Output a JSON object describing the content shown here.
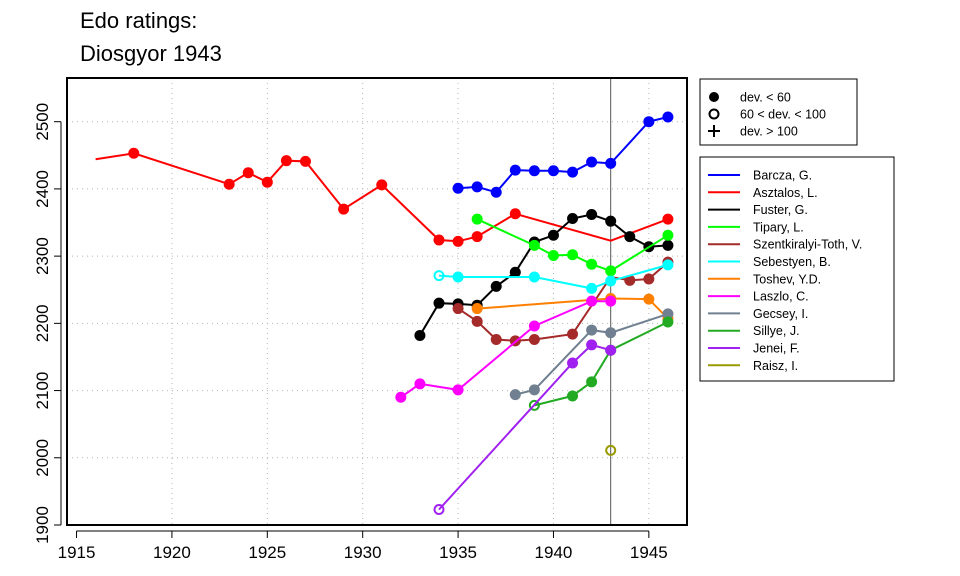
{
  "chart_data": {
    "type": "line",
    "title": "Edo ratings:",
    "subtitle": "Diosgyor 1943",
    "xlabel": "",
    "ylabel": "",
    "xlim": [
      1914.5,
      1947
    ],
    "ylim": [
      1900,
      2565
    ],
    "x_ticks": [
      1915,
      1920,
      1925,
      1930,
      1935,
      1940,
      1945
    ],
    "x_tick_labels": [
      "1915",
      "1920",
      "1925",
      "1930",
      "1935",
      "1940",
      "1945"
    ],
    "y_ticks": [
      1900,
      2000,
      2100,
      2200,
      2300,
      2400,
      2500
    ],
    "y_tick_labels": [
      "1900",
      "2000",
      "2100",
      "2200",
      "2300",
      "2400",
      "2500"
    ],
    "grid": true,
    "marker_line_year": 1943,
    "marker_legend": [
      {
        "symbol": "filled-circle",
        "label": "dev. < 60"
      },
      {
        "symbol": "open-circle",
        "label": "60 < dev. < 100"
      },
      {
        "symbol": "plus",
        "label": "dev. > 100"
      }
    ],
    "legend_position": "right",
    "series": [
      {
        "name": "Barcza, G.",
        "color": "#0000ff",
        "points": [
          [
            1935,
            2401,
            "f"
          ],
          [
            1936,
            2403,
            "f"
          ],
          [
            1937,
            2395,
            "f"
          ],
          [
            1938,
            2428,
            "f"
          ],
          [
            1939,
            2427,
            "f"
          ],
          [
            1940,
            2427,
            "f"
          ],
          [
            1941,
            2425,
            "f"
          ],
          [
            1942,
            2440,
            "f"
          ],
          [
            1943,
            2438,
            "f"
          ],
          [
            1945,
            2500,
            "f"
          ],
          [
            1946,
            2507,
            "f"
          ]
        ]
      },
      {
        "name": "Asztalos, L.",
        "color": "#ff0000",
        "points": [
          [
            1916,
            2444,
            "n"
          ],
          [
            1918,
            2453,
            "f"
          ],
          [
            1923,
            2407,
            "f"
          ],
          [
            1924,
            2424,
            "f"
          ],
          [
            1925,
            2410,
            "f"
          ],
          [
            1926,
            2442,
            "f"
          ],
          [
            1927,
            2441,
            "f"
          ],
          [
            1929,
            2370,
            "f"
          ],
          [
            1931,
            2406,
            "f"
          ],
          [
            1934,
            2324,
            "f"
          ],
          [
            1935,
            2322,
            "f"
          ],
          [
            1936,
            2329,
            "f"
          ],
          [
            1938,
            2363,
            "f"
          ],
          [
            1943,
            2323,
            "n"
          ],
          [
            1946,
            2355,
            "f"
          ]
        ]
      },
      {
        "name": "Fuster, G.",
        "color": "#000000",
        "points": [
          [
            1933,
            2182,
            "f"
          ],
          [
            1934,
            2230,
            "f"
          ],
          [
            1935,
            2229,
            "f"
          ],
          [
            1936,
            2227,
            "f"
          ],
          [
            1937,
            2255,
            "f"
          ],
          [
            1938,
            2276,
            "f"
          ],
          [
            1939,
            2321,
            "f"
          ],
          [
            1940,
            2331,
            "f"
          ],
          [
            1941,
            2356,
            "f"
          ],
          [
            1942,
            2362,
            "f"
          ],
          [
            1943,
            2352,
            "f"
          ],
          [
            1944,
            2329,
            "f"
          ],
          [
            1945,
            2314,
            "f"
          ],
          [
            1946,
            2316,
            "f"
          ]
        ]
      },
      {
        "name": "Tipary, L.",
        "color": "#00ff00",
        "points": [
          [
            1936,
            2355,
            "f"
          ],
          [
            1939,
            2316,
            "f"
          ],
          [
            1940,
            2301,
            "f"
          ],
          [
            1941,
            2302,
            "f"
          ],
          [
            1942,
            2288,
            "f"
          ],
          [
            1943,
            2278,
            "f"
          ],
          [
            1946,
            2331,
            "f"
          ]
        ]
      },
      {
        "name": "Szentkiralyi-Toth, V.",
        "color": "#a52a2a",
        "points": [
          [
            1935,
            2222,
            "f"
          ],
          [
            1936,
            2203,
            "f"
          ],
          [
            1937,
            2176,
            "f"
          ],
          [
            1938,
            2174,
            "f"
          ],
          [
            1939,
            2176,
            "f"
          ],
          [
            1941,
            2184,
            "f"
          ],
          [
            1943,
            2269,
            "n"
          ],
          [
            1944,
            2264,
            "f"
          ],
          [
            1945,
            2266,
            "f"
          ],
          [
            1946,
            2291,
            "f"
          ]
        ]
      },
      {
        "name": "Sebestyen, B.",
        "color": "#00ffff",
        "points": [
          [
            1934,
            2271,
            "o"
          ],
          [
            1935,
            2269,
            "f"
          ],
          [
            1939,
            2269,
            "f"
          ],
          [
            1942,
            2252,
            "f"
          ],
          [
            1943,
            2263,
            "f"
          ],
          [
            1946,
            2287,
            "f"
          ]
        ]
      },
      {
        "name": "Toshev, Y.D.",
        "color": "#ff7f00",
        "points": [
          [
            1936,
            2222,
            "f"
          ],
          [
            1943,
            2237,
            "f"
          ],
          [
            1945,
            2236,
            "f"
          ],
          [
            1946,
            2207,
            "f"
          ]
        ]
      },
      {
        "name": "Laszlo, C.",
        "color": "#ff00ff",
        "points": [
          [
            1932,
            2090,
            "f"
          ],
          [
            1933,
            2110,
            "f"
          ],
          [
            1935,
            2101,
            "f"
          ],
          [
            1939,
            2196,
            "f"
          ],
          [
            1942,
            2233,
            "f"
          ],
          [
            1943,
            2233,
            "f"
          ]
        ]
      },
      {
        "name": "Gecsey, I.",
        "color": "#708090",
        "points": [
          [
            1938,
            2094,
            "f"
          ],
          [
            1939,
            2101,
            "f"
          ],
          [
            1942,
            2190,
            "f"
          ],
          [
            1943,
            2186,
            "f"
          ],
          [
            1946,
            2214,
            "f"
          ]
        ]
      },
      {
        "name": "Sillye, J.",
        "color": "#22aa22",
        "points": [
          [
            1939,
            2078,
            "o"
          ],
          [
            1941,
            2092,
            "f"
          ],
          [
            1942,
            2113,
            "f"
          ],
          [
            1943,
            2160,
            "f"
          ],
          [
            1946,
            2202,
            "f"
          ]
        ]
      },
      {
        "name": "Jenei, F.",
        "color": "#a020f0",
        "points": [
          [
            1934,
            1923,
            "o"
          ],
          [
            1941,
            2141,
            "f"
          ],
          [
            1942,
            2168,
            "f"
          ],
          [
            1943,
            2160,
            "f"
          ]
        ]
      },
      {
        "name": "Raisz, I.",
        "color": "#999900",
        "points": [
          [
            1943,
            2011,
            "o"
          ]
        ]
      }
    ]
  }
}
